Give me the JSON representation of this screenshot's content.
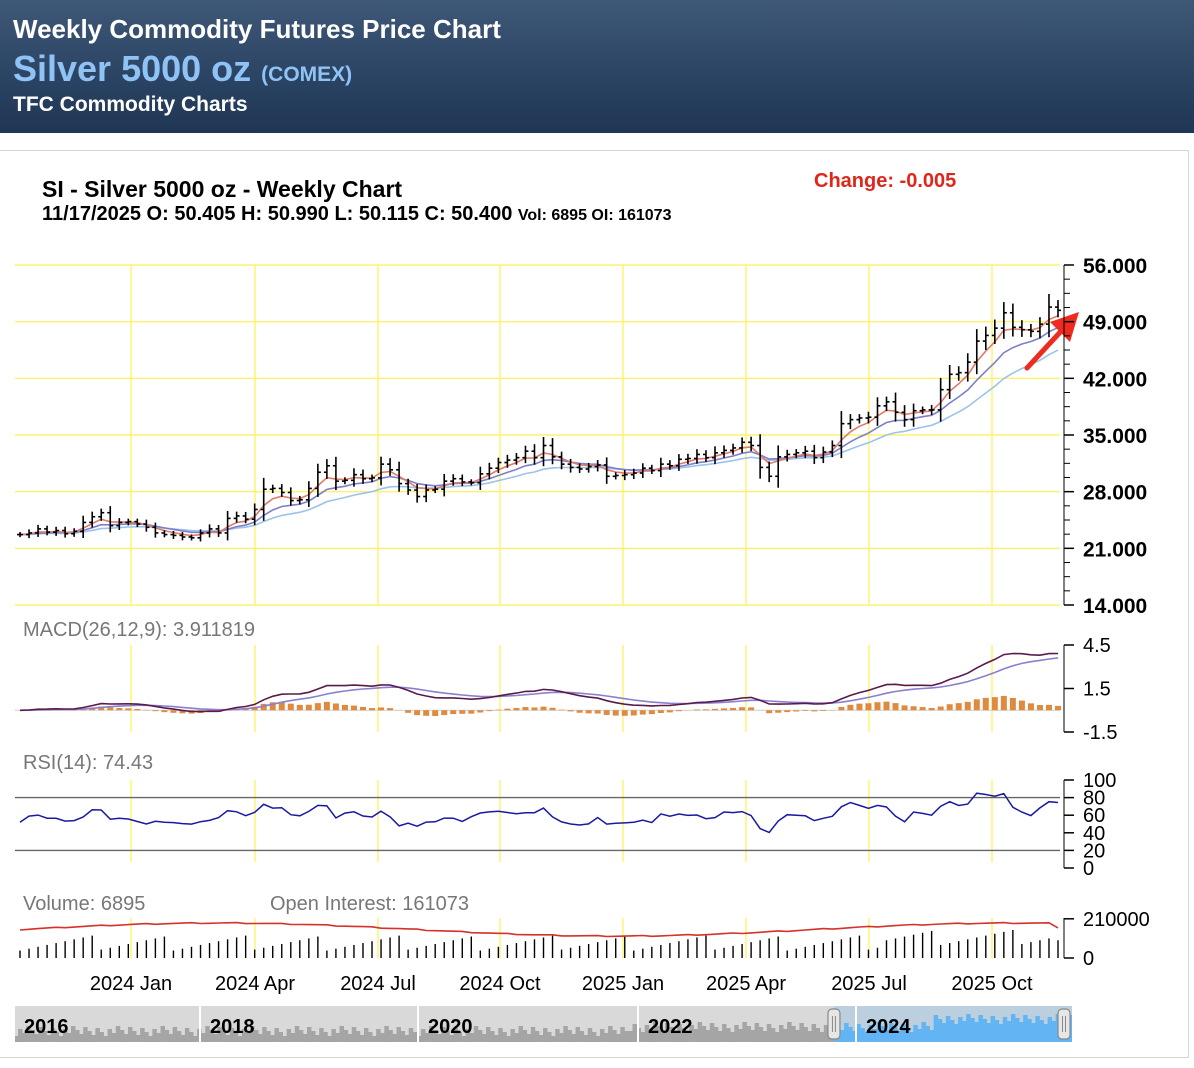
{
  "banner": {
    "line1": "Weekly Commodity Futures Price Chart",
    "line2": "Silver 5000 oz",
    "exchange": "(COMEX)",
    "line3": "TFC Commodity Charts"
  },
  "header": {
    "title": "SI - Silver 5000 oz - Weekly Chart",
    "ohlc": "11/17/2025 O: 50.405 H: 50.990 L: 50.115 C: 50.400",
    "vol_oi": "Vol: 6895 OI: 161073",
    "change": "Change: -0.005"
  },
  "colors": {
    "price_bar": "#000000",
    "ma_short": "#e07a6a",
    "ma_mid": "#7e7fc9",
    "ma_long": "#9cc3e8",
    "macd_line": "#5a1a4a",
    "signal_line": "#8a7fd0",
    "histogram": "#e08a40",
    "rsi_line": "#1a1aa0",
    "open_interest": "#d4322a",
    "volume": "#000000",
    "gridline": "#fff36b",
    "arrow": "#ee2b1e",
    "scroller_selected": "#62b4f2"
  },
  "chart_data": [
    {
      "type": "ohlc",
      "name": "price",
      "x_axis_labels": [
        "2024 Jan",
        "2024 Apr",
        "2024 Jul",
        "2024 Oct",
        "2025 Jan",
        "2025 Apr",
        "2025 Jul",
        "2025 Oct"
      ],
      "y_ticks": [
        "56.000",
        "49.000",
        "42.000",
        "35.000",
        "28.000",
        "21.000",
        "14.000"
      ],
      "ylim": [
        14,
        56
      ],
      "close_by_week": [
        22.7,
        22.9,
        23.4,
        23.0,
        23.2,
        22.8,
        23.1,
        24.2,
        24.9,
        25.4,
        23.8,
        24.2,
        24.3,
        24.0,
        23.6,
        22.9,
        22.7,
        22.6,
        22.4,
        22.3,
        22.9,
        23.4,
        22.9,
        24.7,
        25.0,
        24.6,
        25.8,
        28.3,
        28.4,
        27.9,
        26.9,
        27.0,
        28.4,
        30.4,
        31.2,
        29.3,
        29.4,
        30.1,
        29.6,
        29.7,
        31.4,
        30.7,
        29.0,
        28.2,
        27.4,
        28.2,
        28.3,
        29.3,
        29.6,
        29.2,
        29.1,
        30.2,
        30.9,
        31.6,
        31.9,
        32.2,
        33.0,
        32.2,
        33.7,
        32.3,
        31.4,
        31.0,
        30.8,
        31.1,
        31.3,
        29.9,
        30.0,
        30.1,
        30.3,
        30.9,
        30.6,
        31.4,
        31.2,
        32.0,
        32.1,
        32.6,
        32.2,
        32.8,
        33.1,
        33.4,
        34.1,
        33.7,
        31.0,
        29.9,
        32.3,
        32.6,
        32.8,
        33.0,
        32.2,
        32.9,
        33.7,
        36.4,
        36.9,
        37.1,
        37.2,
        38.6,
        39.1,
        37.8,
        36.9,
        38.0,
        38.1,
        38.1,
        40.6,
        42.5,
        42.7,
        44.0,
        46.6,
        47.3,
        48.2,
        50.1,
        48.3,
        48.0,
        47.8,
        48.7,
        50.8,
        50.4
      ],
      "moving_averages": [
        "short",
        "mid",
        "long"
      ]
    },
    {
      "type": "line",
      "name": "MACD(26,12,9)",
      "label": "MACD(26,12,9): 3.911819",
      "value": 3.911819,
      "y_ticks": [
        "4.5",
        "1.5",
        "-1.5"
      ],
      "ylim": [
        -1.5,
        4.5
      ]
    },
    {
      "type": "line",
      "name": "RSI(14)",
      "label": "RSI(14): 74.43",
      "value": 74.43,
      "y_ticks": [
        "100",
        "80",
        "60",
        "40",
        "20",
        "0"
      ],
      "ylim": [
        0,
        100
      ],
      "reference_lines": [
        80,
        20
      ]
    },
    {
      "type": "bar",
      "name": "Volume / Open Interest",
      "volume_label": "Volume: 6895",
      "oi_label": "Open Interest: 161073",
      "volume": 6895,
      "open_interest": 161073,
      "y_ticks": [
        "210000",
        "0"
      ],
      "ylim": [
        0,
        210000
      ]
    }
  ],
  "scroller": {
    "years": [
      "2016",
      "2018",
      "2020",
      "2022",
      "2024"
    ],
    "selected_start_fraction": 0.775,
    "selected_end_fraction": 1.0
  }
}
